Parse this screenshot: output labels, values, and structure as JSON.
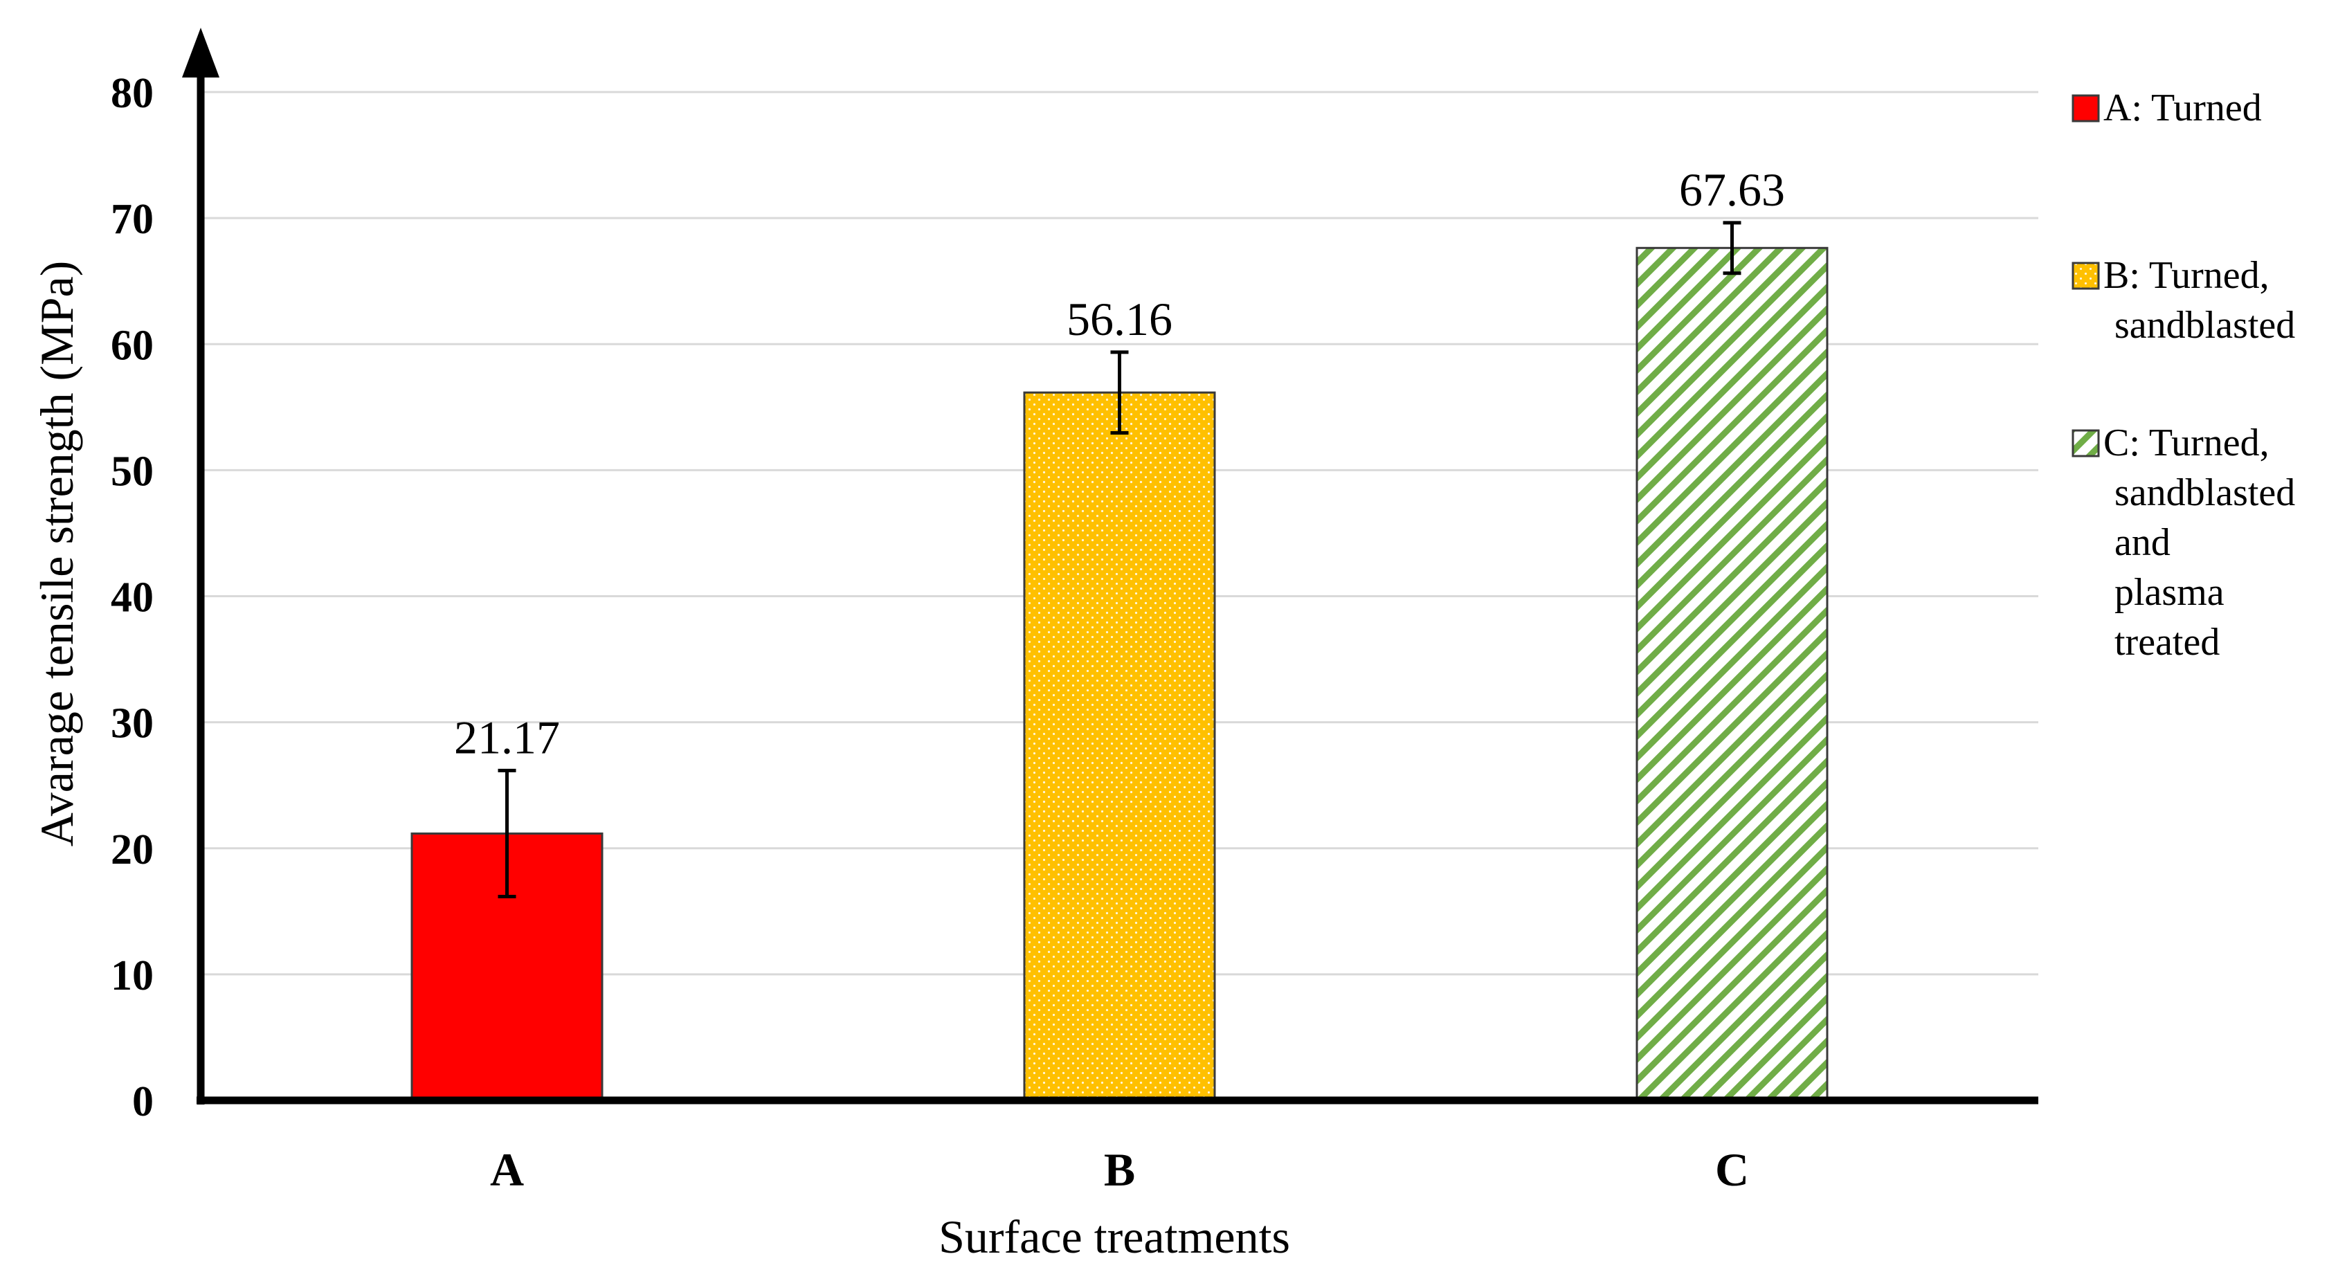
{
  "chart_data": {
    "type": "bar",
    "title": "",
    "xlabel": "Surface treatments",
    "ylabel": "Avarage tensile strength (MPa)",
    "ylim": [
      0,
      80
    ],
    "yticks": [
      0,
      10,
      20,
      30,
      40,
      50,
      60,
      70,
      80
    ],
    "grid": true,
    "legend_position": "right",
    "categories": [
      "A",
      "B",
      "C"
    ],
    "values": [
      21.17,
      56.16,
      67.63
    ],
    "value_labels": [
      "21.17",
      "56.16",
      "67.63"
    ],
    "error": [
      5.0,
      3.2,
      2.0
    ],
    "series": [
      {
        "name": "A: Turned",
        "legend_lines": [
          "A: Turned"
        ],
        "fill": "solid",
        "color": "#ff0000"
      },
      {
        "name": "B: Turned, sandblasted",
        "legend_lines": [
          "B: Turned,",
          "sandblasted"
        ],
        "fill": "dotted",
        "color": "#ffc000"
      },
      {
        "name": "C: Turned, sandblasted and plasma treated",
        "legend_lines": [
          "C: Turned,",
          "sandblasted",
          "and",
          "plasma",
          "treated"
        ],
        "fill": "hatched",
        "color": "#70ad47"
      }
    ]
  }
}
